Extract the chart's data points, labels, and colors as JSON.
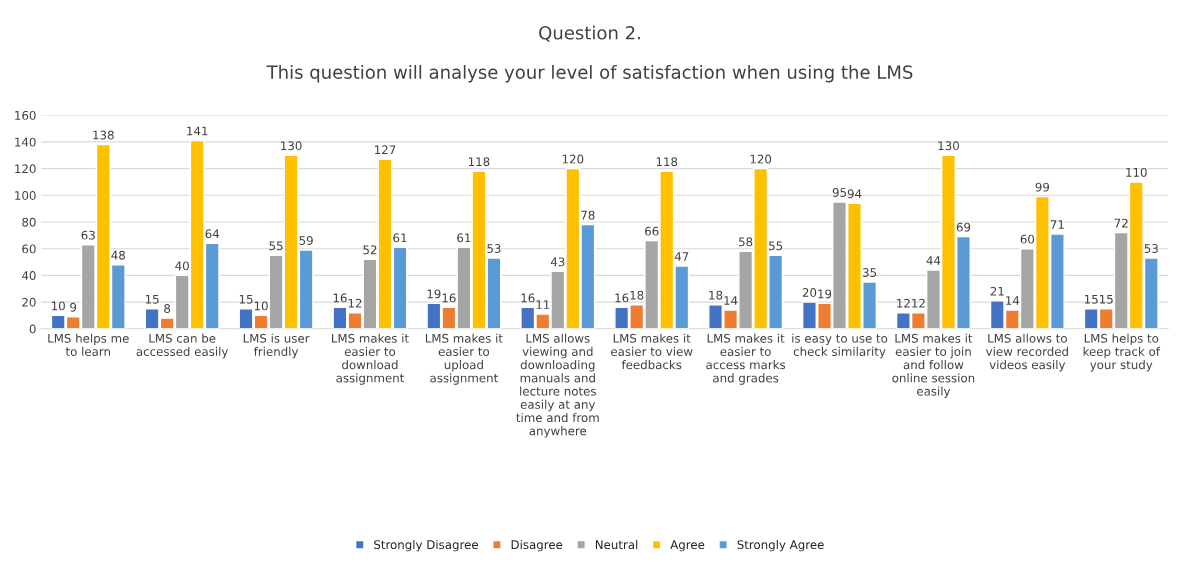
{
  "chart_data": {
    "type": "bar",
    "title": "Question 2.",
    "subtitle": "This question will analyse your level of satisfaction when using the LMS",
    "categories": [
      "LMS helps me\nto learn",
      "LMS can be\naccessed easily",
      "LMS is user\nfriendly",
      "LMS makes it\neasier to\ndownload\nassignment",
      "LMS makes it\neasier to\nupload\nassignment",
      "LMS allows\nviewing and\ndownloading\nmanuals and\nlecture notes\neasily at any\ntime and from\nanywhere",
      "LMS makes it\neasier to view\nfeedbacks",
      "LMS makes it\neasier to\naccess marks\nand grades",
      "is easy to use to\ncheck similarity",
      "LMS makes it\neasier to join\nand follow\nonline session\neasily",
      "LMS allows to\nview recorded\nvideos easily",
      "LMS helps to\nkeep track of\nyour study"
    ],
    "series": [
      {
        "name": "Strongly Disagree",
        "color": "#4472c4",
        "values": [
          10,
          15,
          15,
          16,
          19,
          16,
          16,
          18,
          20,
          12,
          21,
          15
        ]
      },
      {
        "name": "Disagree",
        "color": "#ed7d31",
        "values": [
          9,
          8,
          10,
          12,
          16,
          11,
          18,
          14,
          19,
          12,
          14,
          15
        ]
      },
      {
        "name": "Neutral",
        "color": "#a5a5a5",
        "values": [
          63,
          40,
          55,
          52,
          61,
          43,
          66,
          58,
          95,
          44,
          60,
          72
        ]
      },
      {
        "name": "Agree",
        "color": "#ffc000",
        "values": [
          138,
          141,
          130,
          127,
          118,
          120,
          118,
          120,
          94,
          130,
          99,
          110
        ]
      },
      {
        "name": "Strongly Agree",
        "color": "#5b9bd5",
        "values": [
          48,
          64,
          59,
          61,
          53,
          78,
          47,
          55,
          35,
          69,
          71,
          53
        ]
      }
    ],
    "ylim": [
      0,
      160
    ],
    "yticks": [
      0,
      20,
      40,
      60,
      80,
      100,
      120,
      140,
      160
    ],
    "grid": "y",
    "legend": "bottom",
    "data_labels": true
  }
}
